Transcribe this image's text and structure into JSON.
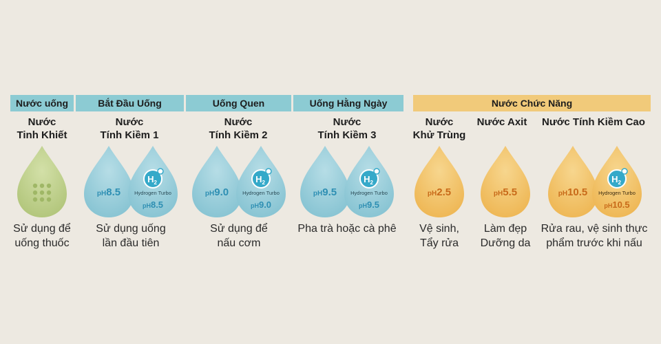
{
  "colors": {
    "teal_band": "#8ccbd3",
    "gold_band": "#f1ca7a",
    "teal_drop": "#9fcfdb",
    "teal_drop_dark": "#6db6c7",
    "gold_drop": "#f3c76f",
    "gold_drop_dark": "#e9ad44",
    "green_drop": "#c3d48f",
    "green_drop_dark": "#a8bd6b",
    "h2_circle": "#35a9c9",
    "ph_text": "#2e8fb3",
    "ph_text_gold": "#c86a19"
  },
  "bands": {
    "b1": "Nước uống",
    "b2": "Bắt Đầu Uống",
    "b3": "Uống Quen",
    "b4": "Uống Hằng Ngày",
    "b5": "Nước Chức Năng"
  },
  "titles": {
    "t1": [
      "Nước",
      "Tinh Khiết"
    ],
    "t2": [
      "Nước",
      "Tính Kiềm 1"
    ],
    "t3": [
      "Nước",
      "Tính Kiềm 2"
    ],
    "t4": [
      "Nước",
      "Tính Kiềm 3"
    ],
    "t5": [
      "Nước",
      "Khử Trùng"
    ],
    "t6": "Nước Axit",
    "t7": "Nước Tính Kiềm Cao"
  },
  "descriptions": {
    "d1": [
      "Sử dụng để",
      "uống thuốc"
    ],
    "d2": [
      "Sử dụng uống",
      "lần đầu tiên"
    ],
    "d3": [
      "Sử dụng để",
      "nấu cơm"
    ],
    "d4": "Pha trà hoặc cà phê",
    "d5": [
      "Vệ sinh,",
      "Tẩy rửa"
    ],
    "d6": [
      "Làm đẹp",
      "Dưỡng da"
    ],
    "d7": [
      "Rửa rau, vệ sinh thực",
      "phẩm trước khi nấu"
    ]
  },
  "drops": {
    "ph_prefix": "pH",
    "h2_label": "H",
    "h2_sub": "2",
    "turbo_label": "Hydrogen Turbo",
    "p2": "8.5",
    "p2t": "8.5",
    "p3": "9.0",
    "p3t": "9.0",
    "p4": "9.5",
    "p4t": "9.5",
    "p5": "2.5",
    "p6": "5.5",
    "p7": "10.5",
    "p7t": "10.5"
  }
}
